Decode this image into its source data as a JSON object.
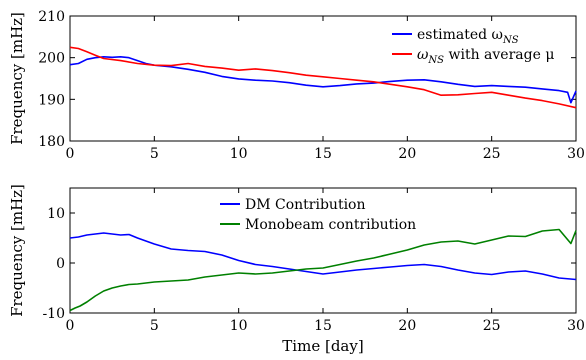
{
  "chart_data": [
    {
      "type": "line",
      "xlabel": "",
      "ylabel": "Frequency [mHz]",
      "xlim": [
        0,
        30
      ],
      "ylim": [
        180,
        210
      ],
      "xticks": [
        0,
        5,
        10,
        15,
        20,
        25,
        30
      ],
      "yticks": [
        180,
        190,
        200,
        210
      ],
      "grid": false,
      "legend_position": "top-right",
      "series": [
        {
          "name_main": "estimated ω",
          "name_sub": "NS",
          "name_tail": "",
          "color": "#0000ff",
          "x": [
            0,
            0.5,
            1,
            1.5,
            2,
            2.5,
            3,
            3.5,
            4,
            4.5,
            5,
            6,
            7,
            8,
            9,
            10,
            11,
            12,
            13,
            14,
            15,
            16,
            17,
            18,
            19,
            20,
            21,
            22,
            23,
            24,
            25,
            26,
            27,
            28,
            29,
            29.5,
            29.7,
            30
          ],
          "y": [
            198.3,
            198.6,
            199.6,
            200.0,
            200.2,
            200.1,
            200.2,
            200.0,
            199.3,
            198.6,
            198.2,
            197.8,
            197.2,
            196.5,
            195.5,
            194.9,
            194.6,
            194.4,
            194.0,
            193.4,
            193.0,
            193.3,
            193.7,
            193.9,
            194.3,
            194.6,
            194.7,
            194.2,
            193.6,
            193.1,
            193.3,
            193.1,
            192.9,
            192.5,
            192.1,
            191.7,
            189.2,
            192.0
          ]
        },
        {
          "name_main": "ω",
          "name_sub": "NS",
          "name_tail": " with average μ",
          "color": "#ff0000",
          "x": [
            0,
            0.5,
            1,
            1.5,
            2,
            3,
            4,
            5,
            6,
            7,
            8,
            9,
            10,
            11,
            12,
            13,
            14,
            15,
            16,
            17,
            18,
            19,
            20,
            21,
            22,
            23,
            24,
            25,
            26,
            27,
            28,
            29,
            30
          ],
          "y": [
            202.5,
            202.2,
            201.4,
            200.6,
            199.8,
            199.3,
            198.6,
            198.2,
            198.1,
            198.6,
            197.9,
            197.5,
            197.0,
            197.3,
            196.9,
            196.4,
            195.8,
            195.4,
            195.0,
            194.6,
            194.2,
            193.6,
            193.0,
            192.3,
            191.0,
            191.1,
            191.4,
            191.7,
            191.0,
            190.3,
            189.7,
            188.9,
            188.0
          ]
        }
      ]
    },
    {
      "type": "line",
      "xlabel": "Time [day]",
      "ylabel": "Frequency [mHz]",
      "xlim": [
        0,
        30
      ],
      "ylim": [
        -10,
        15
      ],
      "xticks": [
        0,
        5,
        10,
        15,
        20,
        25,
        30
      ],
      "yticks": [
        -10,
        0,
        10
      ],
      "grid": false,
      "legend_position": "top-center",
      "series": [
        {
          "name_main": "DM Contribution",
          "name_sub": "",
          "name_tail": "",
          "color": "#0000ff",
          "x": [
            0,
            0.5,
            1,
            1.5,
            2,
            2.5,
            3,
            3.5,
            4,
            5,
            6,
            7,
            8,
            9,
            10,
            11,
            12,
            13,
            14,
            15,
            16,
            17,
            18,
            19,
            20,
            21,
            22,
            23,
            24,
            25,
            26,
            27,
            28,
            29,
            30
          ],
          "y": [
            5.0,
            5.2,
            5.6,
            5.8,
            6.0,
            5.8,
            5.6,
            5.7,
            5.0,
            3.8,
            2.8,
            2.5,
            2.3,
            1.6,
            0.5,
            -0.3,
            -0.7,
            -1.2,
            -1.7,
            -2.2,
            -1.8,
            -1.4,
            -1.1,
            -0.8,
            -0.5,
            -0.3,
            -0.7,
            -1.4,
            -2.0,
            -2.3,
            -1.8,
            -1.6,
            -2.2,
            -3.0,
            -3.3
          ]
        },
        {
          "name_main": "Monobeam contribution",
          "name_sub": "",
          "name_tail": "",
          "color": "#008000",
          "x": [
            0,
            0.3,
            0.6,
            1,
            1.5,
            2,
            2.5,
            3,
            3.5,
            4,
            5,
            6,
            7,
            8,
            9,
            10,
            11,
            12,
            13,
            14,
            15,
            16,
            17,
            18,
            19,
            20,
            21,
            22,
            23,
            24,
            25,
            26,
            27,
            28,
            29,
            29.7,
            30
          ],
          "y": [
            -9.5,
            -9.0,
            -8.6,
            -7.8,
            -6.6,
            -5.6,
            -5.0,
            -4.6,
            -4.3,
            -4.2,
            -3.8,
            -3.6,
            -3.4,
            -2.8,
            -2.4,
            -2.0,
            -2.2,
            -2.0,
            -1.6,
            -1.2,
            -1.0,
            -0.3,
            0.4,
            1.0,
            1.8,
            2.6,
            3.6,
            4.2,
            4.4,
            3.8,
            4.6,
            5.4,
            5.3,
            6.4,
            6.7,
            3.9,
            6.5
          ]
        }
      ]
    }
  ]
}
